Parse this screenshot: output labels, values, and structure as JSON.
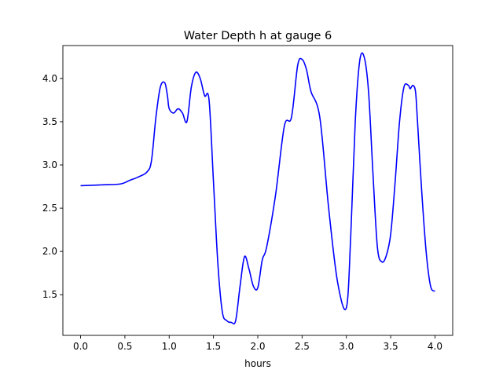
{
  "chart_data": {
    "type": "line",
    "title": "Water Depth h at gauge 6",
    "xlabel": "hours",
    "ylabel": "",
    "xlim": [
      -0.2,
      4.2
    ],
    "ylim": [
      1.03,
      4.38
    ],
    "xticks": [
      "0.0",
      "0.5",
      "1.0",
      "1.5",
      "2.0",
      "2.5",
      "3.0",
      "3.5",
      "4.0"
    ],
    "yticks": [
      "1.5",
      "2.0",
      "2.5",
      "3.0",
      "3.5",
      "4.0"
    ],
    "grid": false,
    "legend": "none",
    "series": [
      {
        "color": "#0000ff",
        "x": [
          0.0,
          0.25,
          0.45,
          0.55,
          0.65,
          0.75,
          0.8,
          0.85,
          0.9,
          0.95,
          0.98,
          1.0,
          1.05,
          1.1,
          1.15,
          1.2,
          1.25,
          1.3,
          1.35,
          1.4,
          1.45,
          1.5,
          1.55,
          1.6,
          1.65,
          1.7,
          1.75,
          1.8,
          1.85,
          1.9,
          1.95,
          2.0,
          2.05,
          2.1,
          2.2,
          2.3,
          2.38,
          2.45,
          2.5,
          2.55,
          2.6,
          2.7,
          2.8,
          2.9,
          3.0,
          3.05,
          3.1,
          3.15,
          3.2,
          3.25,
          3.3,
          3.35,
          3.4,
          3.45,
          3.5,
          3.55,
          3.6,
          3.65,
          3.7,
          3.72,
          3.75,
          3.78,
          3.8,
          3.85,
          3.9,
          3.95,
          4.0
        ],
        "values": [
          2.76,
          2.77,
          2.78,
          2.82,
          2.86,
          2.92,
          3.05,
          3.55,
          3.9,
          3.95,
          3.8,
          3.65,
          3.6,
          3.65,
          3.6,
          3.5,
          3.9,
          4.07,
          4.0,
          3.8,
          3.75,
          2.8,
          1.85,
          1.3,
          1.2,
          1.18,
          1.2,
          1.6,
          1.94,
          1.8,
          1.6,
          1.58,
          1.9,
          2.05,
          2.65,
          3.45,
          3.55,
          4.15,
          4.22,
          4.1,
          3.85,
          3.55,
          2.5,
          1.65,
          1.35,
          2.2,
          3.5,
          4.2,
          4.25,
          3.85,
          2.9,
          2.05,
          1.88,
          1.95,
          2.2,
          2.8,
          3.5,
          3.9,
          3.92,
          3.88,
          3.92,
          3.85,
          3.55,
          2.7,
          2.0,
          1.6,
          1.54
        ]
      }
    ]
  }
}
